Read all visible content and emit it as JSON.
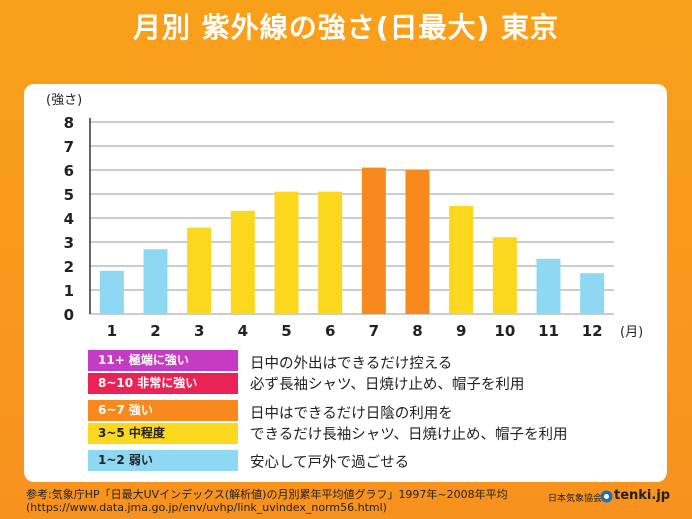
{
  "title": "月別 紫外線の強さ(日最大) 東京",
  "chart_data": {
    "type": "bar",
    "ylabel": "(強さ)",
    "xlabel": "(月)",
    "ylim": [
      0,
      8
    ],
    "yticks": [
      "0",
      "1",
      "2",
      "3",
      "4",
      "5",
      "6",
      "7",
      "8"
    ],
    "grid": true,
    "categories": [
      "1",
      "2",
      "3",
      "4",
      "5",
      "6",
      "7",
      "8",
      "9",
      "10",
      "11",
      "12"
    ],
    "values": [
      1.8,
      2.7,
      3.6,
      4.3,
      5.1,
      5.1,
      6.1,
      6.0,
      4.5,
      3.2,
      2.3,
      1.7
    ],
    "colors": [
      "#8fd8f4",
      "#8fd8f4",
      "#fbd71d",
      "#fbd71d",
      "#fbd71d",
      "#fbd71d",
      "#f7891d",
      "#f7891d",
      "#fbd71d",
      "#fbd71d",
      "#8fd8f4",
      "#8fd8f4"
    ]
  },
  "legend": {
    "levels": [
      {
        "label": "11+ 極端に強い",
        "color": "#c53cc3"
      },
      {
        "label": "8~10 非常に強い",
        "color": "#ea2357"
      },
      {
        "label": "6~7 強い",
        "color": "#f7891d"
      },
      {
        "label": "3~5 中程度",
        "color": "#fbd71d"
      },
      {
        "label": "1~2 弱い",
        "color": "#8fd8f4"
      }
    ],
    "advice": {
      "high_line1": "日中の外出はできるだけ控える",
      "high_line2": "必ず長袖シャツ、日焼け止め、帽子を利用",
      "mid_line1": "日中はできるだけ日陰の利用を",
      "mid_line2": "できるだけ長袖シャツ、日焼け止め、帽子を利用",
      "low": "安心して戸外で過ごせる"
    }
  },
  "source": {
    "line1": "参考:気象庁HP「日最大UVインデックス(解析値)の月別累年平均値グラフ」1997年~2008年平均",
    "line2": "(https://www.data.jma.go.jp/env/uvhp/link_uvindex_norm56.html)"
  },
  "footer": {
    "org": "日本気象協会",
    "brand": "tenki.jp"
  }
}
